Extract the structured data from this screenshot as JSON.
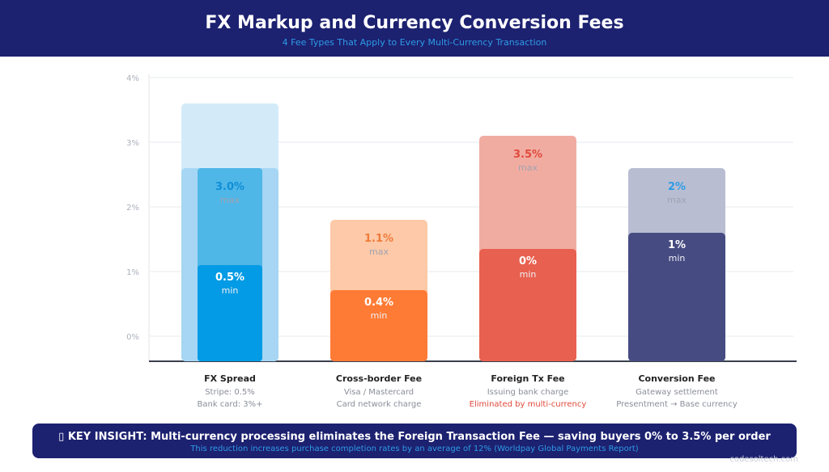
{
  "header": {
    "title": "FX Markup and Currency Conversion Fees",
    "subtitle": "4 Fee Types That Apply to Every Multi-Currency Transaction"
  },
  "chart_data": {
    "type": "bar",
    "yticks": [
      "0%",
      "1%",
      "2%",
      "3%",
      "4%"
    ],
    "categories": [
      "FX Spread",
      "Cross-border Fee",
      "Foreign Tx Fee",
      "Conversion Fee"
    ],
    "category_notes": [
      [
        "Stripe: 0.5%",
        "Bank card: 3%+"
      ],
      [
        "Visa / Mastercard",
        "Card network charge"
      ],
      [
        "Issuing bank charge",
        "Eliminated by multi-currency"
      ],
      [
        "Gateway settlement",
        "Presentment → Base currency"
      ]
    ],
    "series": [
      {
        "name": "min",
        "values": [
          0.5,
          0.4,
          0,
          1
        ],
        "labels": [
          "0.5%",
          "0.4%",
          "0%",
          "1%"
        ]
      },
      {
        "name": "max",
        "values": [
          3.0,
          1.1,
          3.5,
          2
        ],
        "labels": [
          "3.0%",
          "1.1%",
          "3.5%",
          "2%"
        ]
      }
    ],
    "colors": {
      "min": [
        "#039be5",
        "#fe7b35",
        "#e8604f",
        "#464b82"
      ],
      "max": [
        "#4fb6e8",
        "#fdc9a8",
        "#f1aca2",
        "#b9bdd2"
      ],
      "max_label": [
        "#0f8fd6",
        "#f07a3a",
        "#e04a3c",
        "#2e9be6"
      ]
    },
    "highlight_note_color": "#e04a3c",
    "grid": true
  },
  "insight": {
    "headline": "▯ KEY INSIGHT: Multi-currency processing eliminates the Foreign Transaction Fee — saving buyers 0% to 3.5% per order",
    "detail": "This reduction increases purchase completion rates by an average of 12% (Worldpay Global Payments Report)"
  },
  "watermark": "codesoltech.com"
}
